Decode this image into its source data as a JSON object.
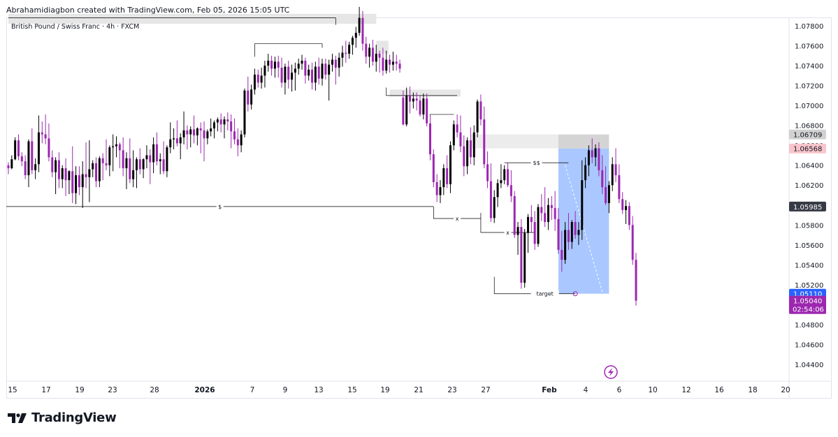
{
  "header": {
    "caption": "Abrahamidiagbon created with TradingView.com, Feb 05, 2026 15:05 UTC"
  },
  "symbol_label": "British Pound / Swiss Franc · 4h · FXCM",
  "brand": {
    "name": "TradingView",
    "icon": "tradingview-logo-icon"
  },
  "colors": {
    "up": "#000000",
    "down": "#9c27b0",
    "position_fill": "#8eb6ff",
    "zone": "#e6e6e6",
    "price_tag_dark": "#363a45",
    "price_tag_pink": "#f8c5cb",
    "price_tag_gray": "#cfcfcf",
    "current_price": "#9c27b0",
    "target_price": "#2962ff"
  },
  "chart_data": {
    "type": "candlestick",
    "pair": "GBP/CHF",
    "timeframe": "4h",
    "ylim": [
      1.043,
      1.0795
    ],
    "y_ticks": [
      "1.07800",
      "1.07600",
      "1.07400",
      "1.07200",
      "1.07000",
      "1.06800",
      "1.06600",
      "1.06400",
      "1.06200",
      "1.05800",
      "1.05600",
      "1.05400",
      "1.05200",
      "1.04800",
      "1.04600",
      "1.04400"
    ],
    "x_ticks": [
      "15",
      "17",
      "19",
      "23",
      "28",
      "2026",
      "7",
      "9",
      "13",
      "15",
      "19",
      "21",
      "23",
      "27",
      "Feb",
      "4",
      "6",
      "10",
      "12",
      "16",
      "18",
      "20"
    ],
    "price_tags": [
      {
        "label": "1.06709",
        "price": 1.06709,
        "style": "gray"
      },
      {
        "label": "1.06568",
        "price": 1.06568,
        "style": "pink"
      },
      {
        "label": "1.05985",
        "price": 1.05985,
        "style": "dark"
      },
      {
        "label": "1.05110",
        "price": 1.0511,
        "style": "blue"
      },
      {
        "label": "1.05040",
        "price": 1.0504,
        "style": "purple",
        "sub": "02:54:06"
      }
    ],
    "levels": [
      {
        "label": "$",
        "price": 1.05985,
        "from_bar": 0,
        "to_bar": 126
      },
      {
        "label": "x",
        "price": 1.05865,
        "from_bar": 126,
        "to_bar": 140
      },
      {
        "label": "x",
        "price": 1.05725,
        "from_bar": 140,
        "to_bar": 156
      },
      {
        "label": "$$",
        "price": 1.06425,
        "from_bar": 147,
        "to_bar": 166
      },
      {
        "label": "target",
        "price": 1.0511,
        "from_bar": 150,
        "to_bar": 168
      }
    ],
    "candles": [
      [
        1.064,
        1.0643,
        1.0631,
        1.0637
      ],
      [
        1.0637,
        1.065,
        1.0636,
        1.0646
      ],
      [
        1.0646,
        1.0668,
        1.0645,
        1.0665
      ],
      [
        1.0665,
        1.0671,
        1.0645,
        1.0649
      ],
      [
        1.0649,
        1.0653,
        1.0639,
        1.0644
      ],
      [
        1.0644,
        1.065,
        1.0626,
        1.063
      ],
      [
        1.063,
        1.0666,
        1.0618,
        1.0664
      ],
      [
        1.0664,
        1.0677,
        1.0631,
        1.0635
      ],
      [
        1.0635,
        1.0647,
        1.0626,
        1.0641
      ],
      [
        1.0641,
        1.069,
        1.0633,
        1.0673
      ],
      [
        1.0673,
        1.0684,
        1.0662,
        1.0671
      ],
      [
        1.0671,
        1.0691,
        1.0661,
        1.0667
      ],
      [
        1.0667,
        1.0682,
        1.0644,
        1.0648
      ],
      [
        1.0648,
        1.0655,
        1.0628,
        1.0633
      ],
      [
        1.0633,
        1.0648,
        1.0611,
        1.0645
      ],
      [
        1.0645,
        1.0653,
        1.0617,
        1.0626
      ],
      [
        1.0626,
        1.064,
        1.0617,
        1.0637
      ],
      [
        1.0637,
        1.0647,
        1.0609,
        1.0625
      ],
      [
        1.0625,
        1.0635,
        1.0611,
        1.0634
      ],
      [
        1.0634,
        1.0659,
        1.0602,
        1.0612
      ],
      [
        1.0612,
        1.0639,
        1.0601,
        1.063
      ],
      [
        1.063,
        1.0639,
        1.061,
        1.0618
      ],
      [
        1.0618,
        1.0644,
        1.0597,
        1.0631
      ],
      [
        1.0631,
        1.0663,
        1.0617,
        1.0628
      ],
      [
        1.0628,
        1.0665,
        1.0603,
        1.0636
      ],
      [
        1.0636,
        1.0645,
        1.0628,
        1.0642
      ],
      [
        1.0642,
        1.0648,
        1.0618,
        1.0624
      ],
      [
        1.0624,
        1.0649,
        1.0618,
        1.0647
      ],
      [
        1.0647,
        1.0652,
        1.0625,
        1.0642
      ],
      [
        1.0642,
        1.0666,
        1.0635,
        1.064
      ],
      [
        1.064,
        1.066,
        1.0629,
        1.0658
      ],
      [
        1.0658,
        1.0671,
        1.0634,
        1.0659
      ],
      [
        1.0659,
        1.0669,
        1.0648,
        1.0661
      ],
      [
        1.0661,
        1.0663,
        1.0637,
        1.0655
      ],
      [
        1.0655,
        1.0668,
        1.0629,
        1.0637
      ],
      [
        1.0637,
        1.0653,
        1.0616,
        1.0647
      ],
      [
        1.0647,
        1.0667,
        1.0622,
        1.0626
      ],
      [
        1.0626,
        1.0655,
        1.0618,
        1.0635
      ],
      [
        1.0635,
        1.0648,
        1.0617,
        1.0646
      ],
      [
        1.0646,
        1.0657,
        1.0631,
        1.0636
      ],
      [
        1.0636,
        1.0647,
        1.0627,
        1.0646
      ],
      [
        1.0646,
        1.066,
        1.0637,
        1.065
      ],
      [
        1.065,
        1.0656,
        1.0621,
        1.0643
      ],
      [
        1.0643,
        1.0668,
        1.0632,
        1.0661
      ],
      [
        1.0661,
        1.0673,
        1.064,
        1.0644
      ],
      [
        1.0644,
        1.0652,
        1.0631,
        1.0646
      ],
      [
        1.0646,
        1.0664,
        1.0631,
        1.0634
      ],
      [
        1.0634,
        1.066,
        1.0628,
        1.0658
      ],
      [
        1.0658,
        1.0683,
        1.0652,
        1.0666
      ],
      [
        1.0666,
        1.0677,
        1.0656,
        1.0667
      ],
      [
        1.0667,
        1.0685,
        1.0659,
        1.0662
      ],
      [
        1.0662,
        1.0672,
        1.0646,
        1.0668
      ],
      [
        1.0668,
        1.0694,
        1.0661,
        1.0675
      ],
      [
        1.0675,
        1.068,
        1.0656,
        1.0671
      ],
      [
        1.0671,
        1.0679,
        1.0658,
        1.0676
      ],
      [
        1.0676,
        1.069,
        1.0662,
        1.067
      ],
      [
        1.067,
        1.0678,
        1.066,
        1.0677
      ],
      [
        1.0677,
        1.0683,
        1.0652,
        1.0675
      ],
      [
        1.0675,
        1.0684,
        1.0644,
        1.0667
      ],
      [
        1.0667,
        1.0676,
        1.0661,
        1.0674
      ],
      [
        1.0674,
        1.0687,
        1.0669,
        1.0677
      ],
      [
        1.0677,
        1.0685,
        1.0667,
        1.0683
      ],
      [
        1.0683,
        1.0688,
        1.0674,
        1.0686
      ],
      [
        1.0686,
        1.0692,
        1.0673,
        1.0681
      ],
      [
        1.0681,
        1.0689,
        1.0667,
        1.0686
      ],
      [
        1.0686,
        1.0693,
        1.0675,
        1.0684
      ],
      [
        1.0684,
        1.0691,
        1.0657,
        1.0674
      ],
      [
        1.0674,
        1.0687,
        1.0661,
        1.0666
      ],
      [
        1.0666,
        1.0677,
        1.0649,
        1.066
      ],
      [
        1.066,
        1.0675,
        1.0653,
        1.0671
      ],
      [
        1.0671,
        1.0717,
        1.0668,
        1.0715
      ],
      [
        1.0715,
        1.0729,
        1.0694,
        1.0701
      ],
      [
        1.0701,
        1.0721,
        1.0696,
        1.0716
      ],
      [
        1.0716,
        1.0737,
        1.0711,
        1.0731
      ],
      [
        1.0731,
        1.0736,
        1.0718,
        1.0723
      ],
      [
        1.0723,
        1.0738,
        1.0717,
        1.073
      ],
      [
        1.073,
        1.0745,
        1.0718,
        1.074
      ],
      [
        1.074,
        1.0752,
        1.0734,
        1.0745
      ],
      [
        1.0745,
        1.075,
        1.073,
        1.0737
      ],
      [
        1.0737,
        1.0749,
        1.0728,
        1.0744
      ],
      [
        1.0744,
        1.075,
        1.0728,
        1.0738
      ],
      [
        1.0738,
        1.0748,
        1.0718,
        1.0723
      ],
      [
        1.0723,
        1.0742,
        1.0711,
        1.0739
      ],
      [
        1.0739,
        1.0745,
        1.0717,
        1.0726
      ],
      [
        1.0726,
        1.0741,
        1.0714,
        1.0733
      ],
      [
        1.0733,
        1.0743,
        1.0715,
        1.0737
      ],
      [
        1.0737,
        1.0747,
        1.0731,
        1.0742
      ],
      [
        1.0742,
        1.0751,
        1.0736,
        1.0745
      ],
      [
        1.0745,
        1.0748,
        1.0722,
        1.073
      ],
      [
        1.073,
        1.0741,
        1.0725,
        1.0736
      ],
      [
        1.0736,
        1.0743,
        1.0716,
        1.0723
      ],
      [
        1.0723,
        1.0744,
        1.0715,
        1.0739
      ],
      [
        1.0739,
        1.0748,
        1.0721,
        1.0727
      ],
      [
        1.0727,
        1.0747,
        1.072,
        1.0742
      ],
      [
        1.0742,
        1.0747,
        1.0726,
        1.0731
      ],
      [
        1.0731,
        1.0746,
        1.0705,
        1.0741
      ],
      [
        1.0741,
        1.0752,
        1.0734,
        1.0746
      ],
      [
        1.0746,
        1.075,
        1.0721,
        1.0738
      ],
      [
        1.0738,
        1.0753,
        1.0729,
        1.0748
      ],
      [
        1.0748,
        1.076,
        1.0739,
        1.0753
      ],
      [
        1.0753,
        1.0765,
        1.0743,
        1.0752
      ],
      [
        1.0752,
        1.0764,
        1.0747,
        1.0761
      ],
      [
        1.0761,
        1.077,
        1.0751,
        1.0768
      ],
      [
        1.0768,
        1.0779,
        1.0758,
        1.0773
      ],
      [
        1.0773,
        1.0799,
        1.077,
        1.0788
      ],
      [
        1.0788,
        1.0795,
        1.0755,
        1.0762
      ],
      [
        1.0762,
        1.0769,
        1.0742,
        1.0749
      ],
      [
        1.0749,
        1.0762,
        1.0738,
        1.0758
      ],
      [
        1.0758,
        1.0766,
        1.074,
        1.0744
      ],
      [
        1.0744,
        1.0761,
        1.0734,
        1.0752
      ],
      [
        1.0752,
        1.0755,
        1.0733,
        1.0748
      ],
      [
        1.0748,
        1.0758,
        1.073,
        1.0735
      ],
      [
        1.0735,
        1.0755,
        1.0732,
        1.0746
      ],
      [
        1.0746,
        1.0751,
        1.0733,
        1.0741
      ],
      [
        1.0741,
        1.0754,
        1.0735,
        1.0744
      ],
      [
        1.0744,
        1.0751,
        1.0735,
        1.0742
      ],
      [
        1.0742,
        1.0746,
        1.0733,
        1.0737
      ],
      [
        1.0708,
        1.0715,
        1.068,
        1.0681
      ],
      [
        1.0681,
        1.0718,
        1.0679,
        1.071
      ],
      [
        1.071,
        1.0719,
        1.0692,
        1.0704
      ],
      [
        1.0704,
        1.0713,
        1.0697,
        1.0707
      ],
      [
        1.0707,
        1.0713,
        1.0695,
        1.0705
      ],
      [
        1.0705,
        1.071,
        1.0689,
        1.0691
      ],
      [
        1.0691,
        1.0712,
        1.0686,
        1.0707
      ],
      [
        1.0707,
        1.0712,
        1.0679,
        1.0682
      ],
      [
        1.0682,
        1.069,
        1.0645,
        1.0651
      ],
      [
        1.0651,
        1.0656,
        1.0618,
        1.0623
      ],
      [
        1.0623,
        1.0631,
        1.0603,
        1.061
      ],
      [
        1.061,
        1.0625,
        1.0602,
        1.0618
      ],
      [
        1.0618,
        1.0641,
        1.061,
        1.0637
      ],
      [
        1.0637,
        1.065,
        1.0617,
        1.0621
      ],
      [
        1.0621,
        1.0664,
        1.0612,
        1.066
      ],
      [
        1.066,
        1.0685,
        1.0655,
        1.0681
      ],
      [
        1.0681,
        1.0691,
        1.0668,
        1.0673
      ],
      [
        1.0673,
        1.069,
        1.0653,
        1.0659
      ],
      [
        1.0659,
        1.067,
        1.0629,
        1.0639
      ],
      [
        1.0639,
        1.0668,
        1.0631,
        1.0665
      ],
      [
        1.0665,
        1.0678,
        1.0641,
        1.0648
      ],
      [
        1.0648,
        1.068,
        1.064,
        1.0673
      ],
      [
        1.0673,
        1.0706,
        1.0668,
        1.0704
      ],
      [
        1.0704,
        1.0711,
        1.068,
        1.0686
      ],
      [
        1.0686,
        1.0699,
        1.0637,
        1.0641
      ],
      [
        1.0641,
        1.0654,
        1.0617,
        1.0624
      ],
      [
        1.0624,
        1.0642,
        1.0583,
        1.0587
      ],
      [
        1.0587,
        1.0615,
        1.0582,
        1.0608
      ],
      [
        1.0608,
        1.0626,
        1.0598,
        1.0622
      ],
      [
        1.0622,
        1.0641,
        1.0617,
        1.0625
      ],
      [
        1.0625,
        1.064,
        1.0621,
        1.0636
      ],
      [
        1.0636,
        1.0642,
        1.0618,
        1.062
      ],
      [
        1.062,
        1.0635,
        1.0603,
        1.0609
      ],
      [
        1.0609,
        1.0614,
        1.0567,
        1.057
      ],
      [
        1.057,
        1.0583,
        1.055,
        1.0578
      ],
      [
        1.0578,
        1.0586,
        1.0516,
        1.0522
      ],
      [
        1.0522,
        1.0576,
        1.0517,
        1.0572
      ],
      [
        1.0572,
        1.0591,
        1.0552,
        1.0588
      ],
      [
        1.0588,
        1.06,
        1.0572,
        1.0583
      ],
      [
        1.0583,
        1.0594,
        1.0555,
        1.0561
      ],
      [
        1.0561,
        1.0601,
        1.0558,
        1.0598
      ],
      [
        1.0598,
        1.0611,
        1.0584,
        1.0592
      ],
      [
        1.0592,
        1.0618,
        1.0578,
        1.0583
      ],
      [
        1.0583,
        1.0607,
        1.0575,
        1.06
      ],
      [
        1.06,
        1.0609,
        1.0585,
        1.0597
      ],
      [
        1.0597,
        1.0614,
        1.0574,
        1.0586
      ],
      [
        1.0586,
        1.0597,
        1.0551,
        1.0555
      ],
      [
        1.0555,
        1.0574,
        1.0533,
        1.0545
      ],
      [
        1.0545,
        1.0583,
        1.0541,
        1.0575
      ],
      [
        1.0575,
        1.0592,
        1.0555,
        1.0563
      ],
      [
        1.0563,
        1.0585,
        1.0556,
        1.0583
      ],
      [
        1.0583,
        1.0594,
        1.0566,
        1.057
      ],
      [
        1.057,
        1.0583,
        1.056,
        1.0575
      ],
      [
        1.0575,
        1.0645,
        1.0565,
        1.0625
      ],
      [
        1.0625,
        1.0648,
        1.0617,
        1.064
      ],
      [
        1.064,
        1.066,
        1.0629,
        1.0655
      ],
      [
        1.0655,
        1.0667,
        1.0642,
        1.0648
      ],
      [
        1.0648,
        1.0661,
        1.0639,
        1.0657
      ],
      [
        1.0657,
        1.0663,
        1.0629,
        1.0635
      ],
      [
        1.0635,
        1.065,
        1.0611,
        1.0618
      ],
      [
        1.0618,
        1.0639,
        1.06,
        1.0602
      ],
      [
        1.0602,
        1.0624,
        1.0592,
        1.062
      ],
      [
        1.062,
        1.0648,
        1.0614,
        1.0641
      ],
      [
        1.0641,
        1.0657,
        1.0623,
        1.063
      ],
      [
        1.063,
        1.0641,
        1.0602,
        1.0606
      ],
      [
        1.0606,
        1.0613,
        1.0591,
        1.0595
      ],
      [
        1.0595,
        1.0605,
        1.0581,
        1.0599
      ],
      [
        1.0599,
        1.0603,
        1.0575,
        1.058
      ],
      [
        1.058,
        1.0589,
        1.054,
        1.0545
      ],
      [
        1.0545,
        1.0552,
        1.0499,
        1.0504
      ]
    ]
  }
}
